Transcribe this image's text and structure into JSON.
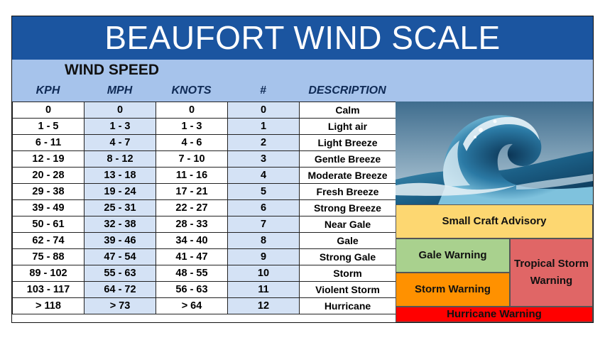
{
  "title": "BEAUFORT WIND SCALE",
  "header": {
    "wind_speed": "WIND SPEED",
    "columns": [
      "KPH",
      "MPH",
      "KNOTS",
      "#",
      "DESCRIPTION"
    ]
  },
  "rows": [
    [
      "0",
      "0",
      "0",
      "0",
      "Calm"
    ],
    [
      "1 - 5",
      "1 - 3",
      "1 - 3",
      "1",
      "Light air"
    ],
    [
      "6 - 11",
      "4 - 7",
      "4 - 6",
      "2",
      "Light Breeze"
    ],
    [
      "12 - 19",
      "8 - 12",
      "7 - 10",
      "3",
      "Gentle Breeze"
    ],
    [
      "20 - 28",
      "13 - 18",
      "11 - 16",
      "4",
      "Moderate Breeze"
    ],
    [
      "29 - 38",
      "19 - 24",
      "17 - 21",
      "5",
      "Fresh Breeze"
    ],
    [
      "39 - 49",
      "25 - 31",
      "22 - 27",
      "6",
      "Strong Breeze"
    ],
    [
      "50 - 61",
      "32 - 38",
      "28 - 33",
      "7",
      "Near Gale"
    ],
    [
      "62 - 74",
      "39 - 46",
      "34 - 40",
      "8",
      "Gale"
    ],
    [
      "75 - 88",
      "47 - 54",
      "41 - 47",
      "9",
      "Strong Gale"
    ],
    [
      "89 - 102",
      "55 - 63",
      "48 - 55",
      "10",
      "Storm"
    ],
    [
      "103 - 117",
      "64 - 72",
      "56 - 63",
      "11",
      "Violent Storm"
    ],
    [
      "> 118",
      "> 73",
      "> 64",
      "12",
      "Hurricane"
    ]
  ],
  "warnings": {
    "small_craft": "Small Craft Advisory",
    "gale": "Gale Warning",
    "tropical_storm": "Tropical Storm Warning",
    "storm": "Storm Warning",
    "hurricane": "Hurricane Warning"
  },
  "image": {
    "icon": "ocean-wave-image"
  },
  "colors": {
    "title_bg": "#1b55a0",
    "header_bg": "#a6c3eb",
    "alt_col_bg": "#d4e2f5",
    "small_craft": "#fdd771",
    "gale": "#a9d18e",
    "tropical_storm": "#e06666",
    "storm": "#ff9100",
    "hurricane": "#ff0000"
  }
}
